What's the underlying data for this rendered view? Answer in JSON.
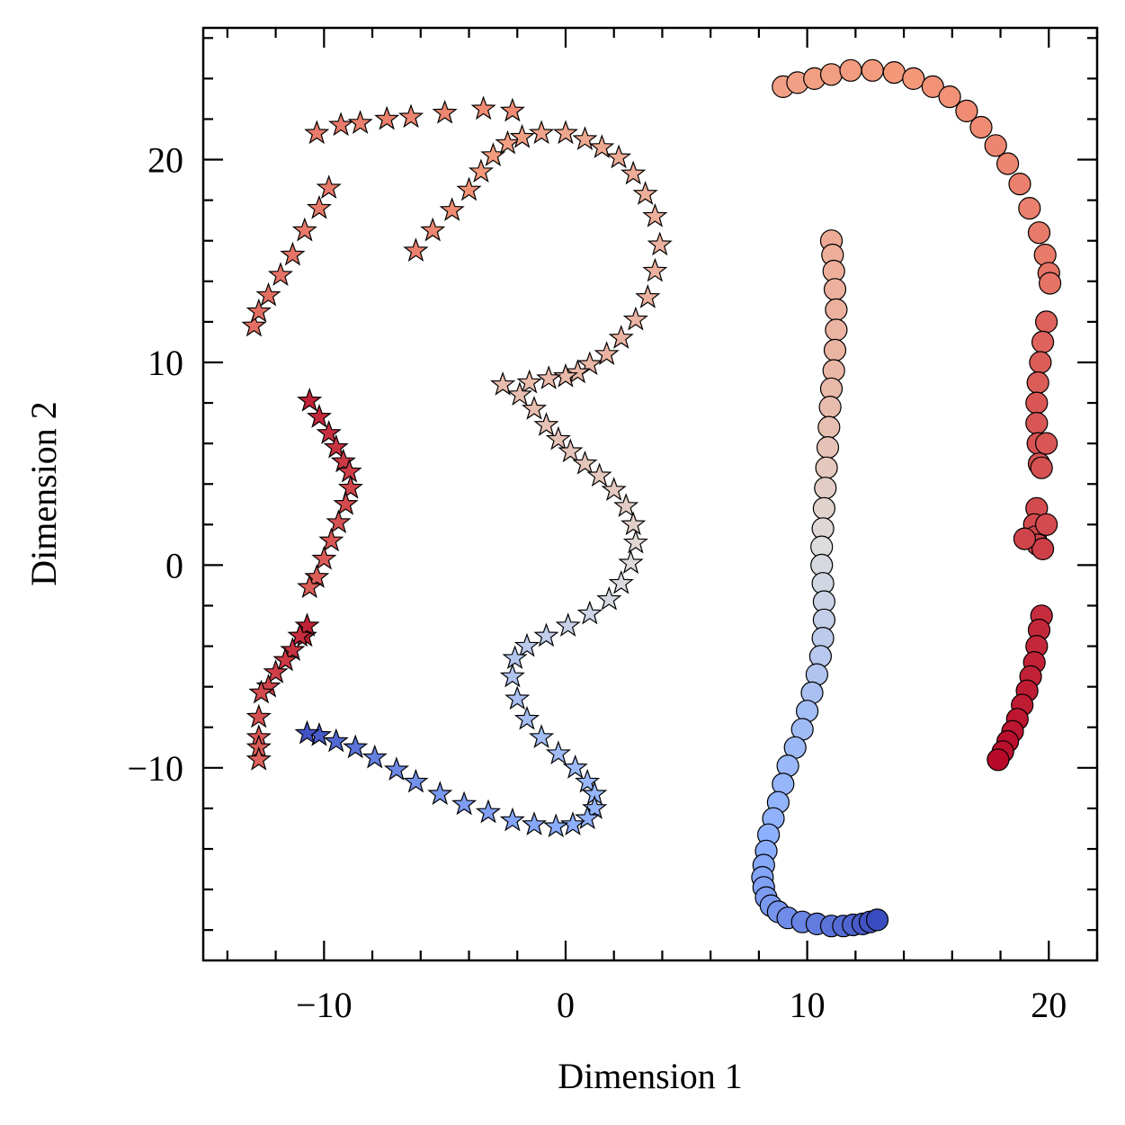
{
  "chart_data": {
    "type": "scatter",
    "xlabel": "Dimension 1",
    "ylabel": "Dimension 2",
    "xlim": [
      -15,
      22
    ],
    "ylim": [
      -19.5,
      26.5
    ],
    "x_ticks": [
      -10,
      0,
      10,
      20
    ],
    "x_tick_labels": [
      "−10",
      "0",
      "10",
      "20"
    ],
    "y_ticks": [
      -10,
      0,
      10,
      20
    ],
    "y_tick_labels": [
      "−10",
      "0",
      "10",
      "20"
    ],
    "grid": false,
    "legend": "none",
    "colormap": "coolwarm",
    "series": [
      {
        "marker": "star",
        "x": [
          -10.6,
          -10.2,
          -9.8,
          -9.5,
          -9.2,
          -8.95,
          -8.9,
          -9.1,
          -9.4,
          -9.7,
          -10.0,
          -10.3,
          -10.6,
          -10.8,
          -10.7,
          -11.0,
          -11.3,
          -11.6,
          -12.0,
          -12.3,
          -12.6,
          -12.7,
          -12.7,
          -12.7,
          -12.7,
          -10.3,
          -9.3,
          -8.5,
          -7.4,
          -6.4,
          -5.0,
          -3.4,
          -2.2,
          -12.9,
          -12.7,
          -12.3,
          -11.8,
          -11.3,
          -10.8,
          -10.2,
          -9.8,
          -6.2,
          -5.5,
          -4.7,
          -4.0,
          -3.5,
          -3.0,
          -2.4,
          -1.8,
          -1.0,
          0.0,
          0.8,
          1.5,
          2.2,
          2.8,
          3.3,
          3.7,
          3.9,
          3.7,
          3.4,
          2.9,
          2.3,
          1.7,
          1.0,
          0.5,
          0.0,
          -0.7,
          -1.5,
          -2.6,
          -1.9,
          -1.3,
          -0.8,
          -0.3,
          0.2,
          0.8,
          1.4,
          2.0,
          2.5,
          2.8,
          2.9,
          2.7,
          2.3,
          1.8,
          1.0,
          0.1,
          -0.8,
          -1.6,
          -2.1,
          -2.2,
          -2.0,
          -1.6,
          -1.0,
          -0.3,
          0.4,
          0.9,
          1.2,
          1.2,
          0.9,
          0.3,
          -0.4,
          -1.3,
          -2.2,
          -3.2,
          -4.2,
          -5.2,
          -6.2,
          -7.0,
          -7.9,
          -8.7,
          -9.5,
          -10.2,
          -10.7
        ],
        "y": [
          8.1,
          7.3,
          6.5,
          5.8,
          5.1,
          4.6,
          3.8,
          3.0,
          2.1,
          1.2,
          0.3,
          -0.6,
          -1.1,
          -3.5,
          -3.0,
          -3.5,
          -4.2,
          -4.7,
          -5.3,
          -6.0,
          -6.3,
          -7.5,
          -8.5,
          -9.0,
          -9.6,
          21.3,
          21.7,
          21.8,
          22.0,
          22.1,
          22.3,
          22.5,
          22.4,
          11.8,
          12.5,
          13.3,
          14.3,
          15.3,
          16.5,
          17.6,
          18.6,
          15.5,
          16.5,
          17.5,
          18.5,
          19.4,
          20.2,
          20.8,
          21.1,
          21.3,
          21.3,
          21.0,
          20.6,
          20.1,
          19.3,
          18.3,
          17.2,
          15.8,
          14.5,
          13.2,
          12.1,
          11.2,
          10.4,
          9.9,
          9.5,
          9.3,
          9.2,
          9.0,
          8.9,
          8.4,
          7.7,
          6.9,
          6.2,
          5.6,
          5.0,
          4.4,
          3.7,
          2.9,
          2.0,
          1.1,
          0.1,
          -0.9,
          -1.7,
          -2.4,
          -3.0,
          -3.5,
          -4.0,
          -4.6,
          -5.5,
          -6.6,
          -7.6,
          -8.5,
          -9.3,
          -10.0,
          -10.7,
          -11.3,
          -12.0,
          -12.5,
          -12.8,
          -12.9,
          -12.8,
          -12.6,
          -12.2,
          -11.8,
          -11.3,
          -10.7,
          -10.1,
          -9.5,
          -9.0,
          -8.7,
          -8.4,
          -8.3
        ],
        "c": [
          0.95,
          0.94,
          0.93,
          0.92,
          0.91,
          0.9,
          0.89,
          0.88,
          0.87,
          0.86,
          0.85,
          0.85,
          0.85,
          0.96,
          0.95,
          0.93,
          0.92,
          0.91,
          0.9,
          0.89,
          0.88,
          0.87,
          0.86,
          0.85,
          0.84,
          0.8,
          0.8,
          0.79,
          0.79,
          0.78,
          0.78,
          0.77,
          0.77,
          0.82,
          0.82,
          0.82,
          0.81,
          0.81,
          0.8,
          0.8,
          0.8,
          0.79,
          0.78,
          0.77,
          0.76,
          0.75,
          0.74,
          0.73,
          0.72,
          0.71,
          0.7,
          0.69,
          0.69,
          0.68,
          0.68,
          0.67,
          0.67,
          0.66,
          0.66,
          0.66,
          0.65,
          0.65,
          0.65,
          0.64,
          0.64,
          0.63,
          0.63,
          0.62,
          0.62,
          0.61,
          0.61,
          0.6,
          0.6,
          0.59,
          0.59,
          0.58,
          0.57,
          0.56,
          0.55,
          0.53,
          0.51,
          0.49,
          0.47,
          0.45,
          0.43,
          0.41,
          0.39,
          0.37,
          0.36,
          0.34,
          0.33,
          0.32,
          0.31,
          0.3,
          0.29,
          0.28,
          0.27,
          0.26,
          0.25,
          0.24,
          0.23,
          0.22,
          0.21,
          0.2,
          0.19,
          0.17,
          0.15,
          0.13,
          0.1,
          0.07,
          0.04,
          0.02
        ]
      },
      {
        "marker": "circle",
        "x": [
          9.0,
          9.6,
          10.3,
          11.0,
          11.8,
          12.7,
          13.6,
          14.4,
          15.2,
          15.9,
          16.6,
          17.2,
          17.8,
          18.3,
          18.8,
          19.2,
          19.6,
          19.85,
          20.0,
          20.05,
          19.9,
          19.75,
          19.65,
          19.55,
          19.5,
          19.5,
          19.55,
          19.6,
          19.9,
          19.7,
          19.5,
          19.4,
          19.45,
          19.55,
          19.75,
          19.9,
          19.0,
          19.7,
          19.6,
          19.5,
          19.4,
          19.25,
          19.1,
          18.9,
          18.7,
          18.5,
          18.3,
          18.1,
          17.9,
          11.0,
          11.05,
          11.1,
          11.15,
          11.2,
          11.2,
          11.15,
          11.1,
          11.0,
          10.95,
          10.9,
          10.85,
          10.8,
          10.75,
          10.7,
          10.65,
          10.6,
          10.6,
          10.65,
          10.7,
          10.7,
          10.65,
          10.55,
          10.4,
          10.2,
          10.0,
          9.8,
          9.5,
          9.2,
          9.0,
          8.8,
          8.6,
          8.4,
          8.3,
          8.2,
          8.15,
          8.2,
          8.3,
          8.5,
          8.8,
          9.2,
          9.8,
          10.4,
          11.0,
          11.5,
          11.9,
          12.3,
          12.6,
          12.9
        ],
        "y": [
          23.6,
          23.8,
          24.0,
          24.2,
          24.4,
          24.4,
          24.3,
          24.0,
          23.6,
          23.1,
          22.4,
          21.6,
          20.7,
          19.8,
          18.8,
          17.6,
          16.4,
          15.3,
          14.4,
          13.9,
          12.0,
          11.0,
          10.0,
          9.0,
          8.0,
          7.0,
          6.0,
          5.0,
          6.0,
          4.8,
          2.8,
          2.0,
          1.4,
          1.0,
          0.8,
          2.0,
          1.3,
          -2.5,
          -3.2,
          -4.0,
          -4.8,
          -5.5,
          -6.2,
          -6.9,
          -7.6,
          -8.2,
          -8.7,
          -9.2,
          -9.6,
          16.0,
          15.3,
          14.5,
          13.6,
          12.6,
          11.6,
          10.6,
          9.6,
          8.7,
          7.8,
          6.8,
          5.8,
          4.8,
          3.8,
          2.8,
          1.8,
          0.9,
          0.0,
          -0.9,
          -1.8,
          -2.7,
          -3.6,
          -4.5,
          -5.4,
          -6.3,
          -7.2,
          -8.1,
          -9.0,
          -9.9,
          -10.8,
          -11.7,
          -12.5,
          -13.3,
          -14.1,
          -14.8,
          -15.4,
          -15.9,
          -16.4,
          -16.8,
          -17.1,
          -17.4,
          -17.6,
          -17.7,
          -17.8,
          -17.8,
          -17.75,
          -17.7,
          -17.6,
          -17.5
        ],
        "c": [
          0.72,
          0.72,
          0.73,
          0.73,
          0.74,
          0.74,
          0.75,
          0.75,
          0.76,
          0.76,
          0.77,
          0.77,
          0.78,
          0.78,
          0.79,
          0.79,
          0.8,
          0.8,
          0.81,
          0.81,
          0.84,
          0.84,
          0.85,
          0.85,
          0.86,
          0.86,
          0.87,
          0.87,
          0.86,
          0.87,
          0.88,
          0.88,
          0.89,
          0.89,
          0.9,
          0.88,
          0.89,
          0.93,
          0.94,
          0.94,
          0.95,
          0.95,
          0.96,
          0.96,
          0.97,
          0.97,
          0.98,
          0.98,
          0.99,
          0.68,
          0.67,
          0.67,
          0.66,
          0.66,
          0.65,
          0.65,
          0.64,
          0.63,
          0.62,
          0.61,
          0.6,
          0.58,
          0.56,
          0.54,
          0.52,
          0.5,
          0.48,
          0.46,
          0.44,
          0.42,
          0.4,
          0.38,
          0.36,
          0.34,
          0.32,
          0.31,
          0.3,
          0.29,
          0.28,
          0.27,
          0.26,
          0.25,
          0.24,
          0.23,
          0.22,
          0.21,
          0.2,
          0.19,
          0.18,
          0.16,
          0.14,
          0.12,
          0.1,
          0.08,
          0.06,
          0.04,
          0.02,
          0.0
        ]
      }
    ]
  }
}
